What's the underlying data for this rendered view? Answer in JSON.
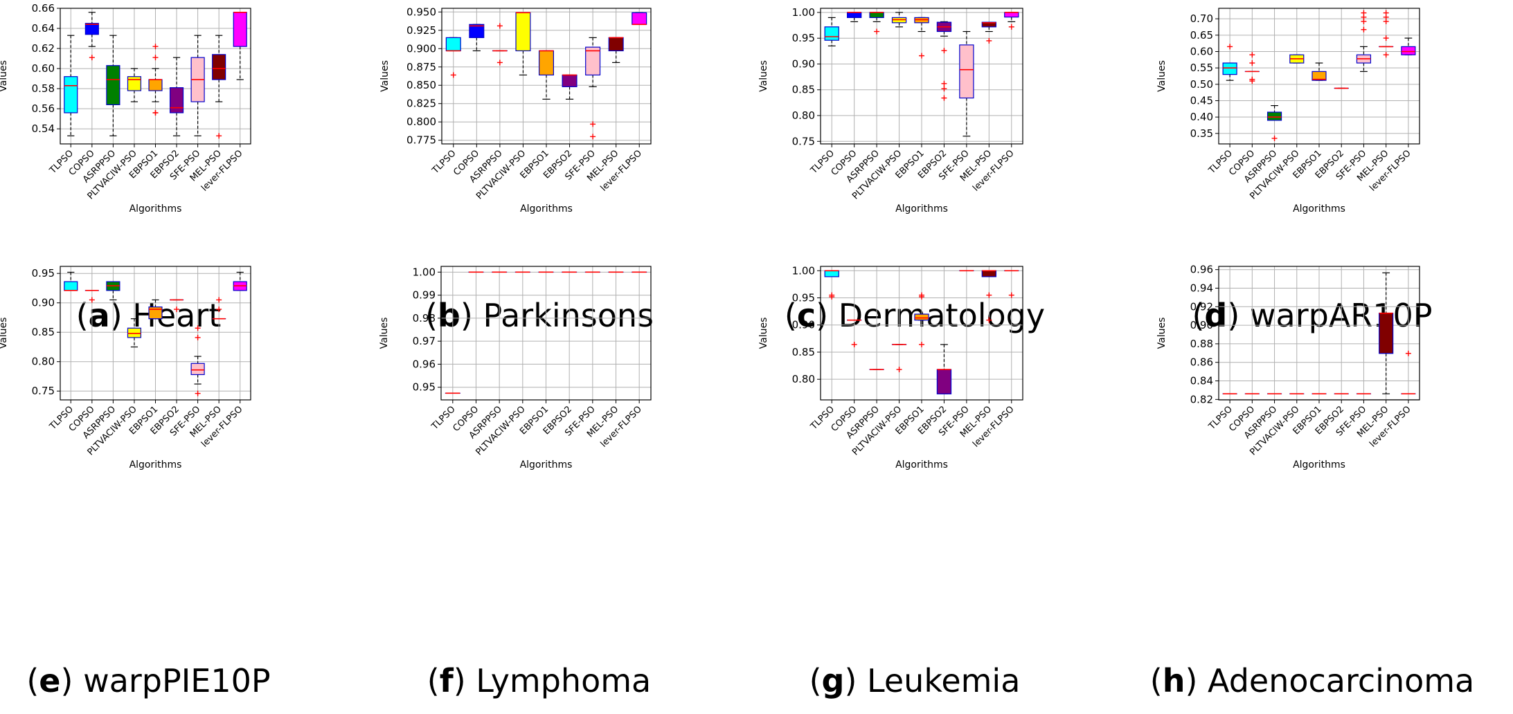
{
  "figure": {
    "algorithms": [
      "TLPSO",
      "COPSO",
      "ASRPPSO",
      "PLTVACIW-PSO",
      "EBPSO1",
      "EBPSO2",
      "SFE-PSO",
      "MEL-PSO",
      "lever-FLPSO"
    ],
    "colors": [
      "#00ffff",
      "#0000ff",
      "#008000",
      "#ffff00",
      "#ffa500",
      "#800080",
      "#ffc0cb",
      "#800000",
      "#ff00ff"
    ],
    "box_edge_color": "#0000cc",
    "median_color": "#ff0000",
    "outlier_color": "#ff0000",
    "whisker_color": "#000000"
  },
  "chart_data": [
    {
      "type": "box",
      "label": "a",
      "title": "Heart",
      "xlabel": "Algorithms",
      "ylabel": "Values",
      "ylim": [
        0.525,
        0.66
      ],
      "yticks": [
        "0.54",
        "0.56",
        "0.58",
        "0.60",
        "0.62",
        "0.64",
        "0.66"
      ],
      "boxes": [
        {
          "q1": 0.556,
          "med": 0.583,
          "q3": 0.592,
          "lo": 0.533,
          "hi": 0.633,
          "out": []
        },
        {
          "q1": 0.634,
          "med": 0.644,
          "q3": 0.645,
          "lo": 0.622,
          "hi": 0.656,
          "out": [
            0.611
          ]
        },
        {
          "q1": 0.564,
          "med": 0.589,
          "q3": 0.603,
          "lo": 0.533,
          "hi": 0.633,
          "out": []
        },
        {
          "q1": 0.578,
          "med": 0.589,
          "q3": 0.592,
          "lo": 0.567,
          "hi": 0.6,
          "out": []
        },
        {
          "q1": 0.578,
          "med": 0.589,
          "q3": 0.589,
          "lo": 0.567,
          "hi": 0.6,
          "out": [
            0.611,
            0.622,
            0.556,
            0.556
          ]
        },
        {
          "q1": 0.556,
          "med": 0.561,
          "q3": 0.581,
          "lo": 0.533,
          "hi": 0.611,
          "out": []
        },
        {
          "q1": 0.567,
          "med": 0.589,
          "q3": 0.611,
          "lo": 0.533,
          "hi": 0.633,
          "out": []
        },
        {
          "q1": 0.589,
          "med": 0.6,
          "q3": 0.614,
          "lo": 0.567,
          "hi": 0.633,
          "out": [
            0.533
          ]
        },
        {
          "q1": 0.622,
          "med": 0.656,
          "q3": 0.656,
          "lo": 0.589,
          "hi": 0.656,
          "out": []
        }
      ]
    },
    {
      "type": "box",
      "label": "b",
      "title": "Parkinsons",
      "xlabel": "Algorithms",
      "ylabel": "Values",
      "ylim": [
        0.77,
        0.955
      ],
      "yticks": [
        "0.775",
        "0.800",
        "0.825",
        "0.850",
        "0.875",
        "0.900",
        "0.925",
        "0.950"
      ],
      "boxes": [
        {
          "q1": 0.897,
          "med": 0.897,
          "q3": 0.915,
          "lo": 0.897,
          "hi": 0.915,
          "out": [
            0.864
          ]
        },
        {
          "q1": 0.915,
          "med": 0.931,
          "q3": 0.933,
          "lo": 0.897,
          "hi": 0.933,
          "out": []
        },
        {
          "q1": 0.897,
          "med": 0.897,
          "q3": 0.897,
          "lo": 0.897,
          "hi": 0.897,
          "out": [
            0.931,
            0.881
          ]
        },
        {
          "q1": 0.897,
          "med": 0.949,
          "q3": 0.949,
          "lo": 0.864,
          "hi": 0.949,
          "out": []
        },
        {
          "q1": 0.864,
          "med": 0.897,
          "q3": 0.897,
          "lo": 0.831,
          "hi": 0.897,
          "out": []
        },
        {
          "q1": 0.848,
          "med": 0.864,
          "q3": 0.864,
          "lo": 0.831,
          "hi": 0.864,
          "out": []
        },
        {
          "q1": 0.864,
          "med": 0.897,
          "q3": 0.902,
          "lo": 0.848,
          "hi": 0.915,
          "out": [
            0.797,
            0.78
          ]
        },
        {
          "q1": 0.897,
          "med": 0.915,
          "q3": 0.915,
          "lo": 0.881,
          "hi": 0.915,
          "out": []
        },
        {
          "q1": 0.933,
          "med": 0.933,
          "q3": 0.949,
          "lo": 0.933,
          "hi": 0.949,
          "out": []
        }
      ]
    },
    {
      "type": "box",
      "label": "c",
      "title": "Dermatology",
      "xlabel": "Algorithms",
      "ylabel": "Values",
      "ylim": [
        0.745,
        1.008
      ],
      "yticks": [
        "0.75",
        "0.80",
        "0.85",
        "0.90",
        "0.95",
        "1.00"
      ],
      "boxes": [
        {
          "q1": 0.946,
          "med": 0.953,
          "q3": 0.972,
          "lo": 0.935,
          "hi": 0.99,
          "out": []
        },
        {
          "q1": 0.99,
          "med": 1.0,
          "q3": 1.0,
          "lo": 0.982,
          "hi": 1.0,
          "out": []
        },
        {
          "q1": 0.99,
          "med": 1.0,
          "q3": 1.0,
          "lo": 0.982,
          "hi": 1.0,
          "out": [
            0.963
          ]
        },
        {
          "q1": 0.98,
          "med": 0.986,
          "q3": 0.99,
          "lo": 0.972,
          "hi": 1.0,
          "out": []
        },
        {
          "q1": 0.98,
          "med": 0.986,
          "q3": 0.99,
          "lo": 0.963,
          "hi": 0.99,
          "out": [
            0.916
          ]
        },
        {
          "q1": 0.963,
          "med": 0.972,
          "q3": 0.981,
          "lo": 0.954,
          "hi": 0.982,
          "out": [
            0.926,
            0.862,
            0.852,
            0.834
          ]
        },
        {
          "q1": 0.834,
          "med": 0.889,
          "q3": 0.937,
          "lo": 0.76,
          "hi": 0.963,
          "out": []
        },
        {
          "q1": 0.972,
          "med": 0.98,
          "q3": 0.981,
          "lo": 0.963,
          "hi": 0.981,
          "out": [
            0.945
          ]
        },
        {
          "q1": 0.991,
          "med": 1.0,
          "q3": 1.0,
          "lo": 0.982,
          "hi": 1.0,
          "out": [
            0.972
          ]
        }
      ]
    },
    {
      "type": "box",
      "label": "d",
      "title": "warpAR10P",
      "xlabel": "Algorithms",
      "ylabel": "Values",
      "ylim": [
        0.318,
        0.732
      ],
      "yticks": [
        "0.35",
        "0.40",
        "0.45",
        "0.50",
        "0.55",
        "0.60",
        "0.65",
        "0.70"
      ],
      "boxes": [
        {
          "q1": 0.53,
          "med": 0.55,
          "q3": 0.565,
          "lo": 0.512,
          "hi": 0.565,
          "out": [
            0.615
          ]
        },
        {
          "q1": 0.539,
          "med": 0.539,
          "q3": 0.539,
          "lo": 0.539,
          "hi": 0.539,
          "out": [
            0.59,
            0.565,
            0.515,
            0.51
          ]
        },
        {
          "q1": 0.39,
          "med": 0.4,
          "q3": 0.415,
          "lo": 0.39,
          "hi": 0.435,
          "out": [
            0.335
          ]
        },
        {
          "q1": 0.565,
          "med": 0.578,
          "q3": 0.59,
          "lo": 0.565,
          "hi": 0.59,
          "out": []
        },
        {
          "q1": 0.512,
          "med": 0.515,
          "q3": 0.539,
          "lo": 0.512,
          "hi": 0.565,
          "out": []
        },
        {
          "q1": 0.488,
          "med": 0.488,
          "q3": 0.488,
          "lo": 0.488,
          "hi": 0.488,
          "out": []
        },
        {
          "q1": 0.565,
          "med": 0.578,
          "q3": 0.59,
          "lo": 0.539,
          "hi": 0.615,
          "out": [
            0.718,
            0.705,
            0.692,
            0.667
          ]
        },
        {
          "q1": 0.615,
          "med": 0.615,
          "q3": 0.615,
          "lo": 0.615,
          "hi": 0.615,
          "out": [
            0.718,
            0.705,
            0.692,
            0.641,
            0.59
          ]
        },
        {
          "q1": 0.59,
          "med": 0.6,
          "q3": 0.615,
          "lo": 0.59,
          "hi": 0.641,
          "out": []
        }
      ]
    },
    {
      "type": "box",
      "label": "e",
      "title": "warpPIE10P",
      "xlabel": "Algorithms",
      "ylabel": "Values",
      "ylim": [
        0.735,
        0.962
      ],
      "yticks": [
        "0.75",
        "0.80",
        "0.85",
        "0.90",
        "0.95"
      ],
      "boxes": [
        {
          "q1": 0.921,
          "med": 0.921,
          "q3": 0.936,
          "lo": 0.921,
          "hi": 0.952,
          "out": []
        },
        {
          "q1": 0.921,
          "med": 0.921,
          "q3": 0.921,
          "lo": 0.921,
          "hi": 0.921,
          "out": [
            0.905
          ]
        },
        {
          "q1": 0.921,
          "med": 0.929,
          "q3": 0.936,
          "lo": 0.905,
          "hi": 0.936,
          "out": []
        },
        {
          "q1": 0.841,
          "med": 0.848,
          "q3": 0.857,
          "lo": 0.825,
          "hi": 0.873,
          "out": []
        },
        {
          "q1": 0.873,
          "med": 0.889,
          "q3": 0.893,
          "lo": 0.873,
          "hi": 0.905,
          "out": []
        },
        {
          "q1": 0.905,
          "med": 0.905,
          "q3": 0.905,
          "lo": 0.905,
          "hi": 0.905,
          "out": [
            0.889
          ]
        },
        {
          "q1": 0.778,
          "med": 0.786,
          "q3": 0.797,
          "lo": 0.762,
          "hi": 0.809,
          "out": [
            0.857,
            0.841,
            0.746
          ]
        },
        {
          "q1": 0.873,
          "med": 0.873,
          "q3": 0.873,
          "lo": 0.873,
          "hi": 0.873,
          "out": [
            0.905,
            0.889
          ]
        },
        {
          "q1": 0.921,
          "med": 0.929,
          "q3": 0.936,
          "lo": 0.921,
          "hi": 0.952,
          "out": []
        }
      ]
    },
    {
      "type": "box",
      "label": "f",
      "title": "Lymphoma",
      "xlabel": "Algorithms",
      "ylabel": "Values",
      "ylim": [
        0.9445,
        1.0025
      ],
      "yticks": [
        "0.95",
        "0.96",
        "0.97",
        "0.98",
        "0.99",
        "1.00"
      ],
      "boxes": [
        {
          "q1": 0.9474,
          "med": 0.9474,
          "q3": 0.9474,
          "lo": 0.9474,
          "hi": 0.9474,
          "out": []
        },
        {
          "q1": 1.0,
          "med": 1.0,
          "q3": 1.0,
          "lo": 1.0,
          "hi": 1.0,
          "out": []
        },
        {
          "q1": 1.0,
          "med": 1.0,
          "q3": 1.0,
          "lo": 1.0,
          "hi": 1.0,
          "out": []
        },
        {
          "q1": 1.0,
          "med": 1.0,
          "q3": 1.0,
          "lo": 1.0,
          "hi": 1.0,
          "out": []
        },
        {
          "q1": 1.0,
          "med": 1.0,
          "q3": 1.0,
          "lo": 1.0,
          "hi": 1.0,
          "out": []
        },
        {
          "q1": 1.0,
          "med": 1.0,
          "q3": 1.0,
          "lo": 1.0,
          "hi": 1.0,
          "out": []
        },
        {
          "q1": 1.0,
          "med": 1.0,
          "q3": 1.0,
          "lo": 1.0,
          "hi": 1.0,
          "out": []
        },
        {
          "q1": 1.0,
          "med": 1.0,
          "q3": 1.0,
          "lo": 1.0,
          "hi": 1.0,
          "out": []
        },
        {
          "q1": 1.0,
          "med": 1.0,
          "q3": 1.0,
          "lo": 1.0,
          "hi": 1.0,
          "out": []
        }
      ]
    },
    {
      "type": "box",
      "label": "g",
      "title": "Leukemia",
      "xlabel": "Algorithms",
      "ylabel": "Values",
      "ylim": [
        0.762,
        1.008
      ],
      "yticks": [
        "0.80",
        "0.85",
        "0.90",
        "0.95",
        "1.00"
      ],
      "boxes": [
        {
          "q1": 0.989,
          "med": 1.0,
          "q3": 1.0,
          "lo": 0.989,
          "hi": 1.0,
          "out": [
            0.955,
            0.952
          ]
        },
        {
          "q1": 0.909,
          "med": 0.909,
          "q3": 0.909,
          "lo": 0.909,
          "hi": 0.909,
          "out": [
            0.864
          ]
        },
        {
          "q1": 0.818,
          "med": 0.818,
          "q3": 0.818,
          "lo": 0.818,
          "hi": 0.818,
          "out": []
        },
        {
          "q1": 0.864,
          "med": 0.864,
          "q3": 0.864,
          "lo": 0.864,
          "hi": 0.864,
          "out": [
            0.818
          ]
        },
        {
          "q1": 0.909,
          "med": 0.913,
          "q3": 0.92,
          "lo": 0.909,
          "hi": 0.92,
          "out": [
            0.955,
            0.952,
            0.864
          ]
        },
        {
          "q1": 0.773,
          "med": 0.818,
          "q3": 0.818,
          "lo": 0.773,
          "hi": 0.864,
          "out": []
        },
        {
          "q1": 1.0,
          "med": 1.0,
          "q3": 1.0,
          "lo": 1.0,
          "hi": 1.0,
          "out": []
        },
        {
          "q1": 0.989,
          "med": 1.0,
          "q3": 1.0,
          "lo": 0.989,
          "hi": 1.0,
          "out": [
            0.955,
            0.909
          ]
        },
        {
          "q1": 1.0,
          "med": 1.0,
          "q3": 1.0,
          "lo": 1.0,
          "hi": 1.0,
          "out": [
            0.955
          ]
        }
      ]
    },
    {
      "type": "box",
      "label": "h",
      "title": "Adenocarcinoma",
      "xlabel": "Algorithms",
      "ylabel": "Values",
      "ylim": [
        0.8195,
        0.9635
      ],
      "yticks": [
        "0.82",
        "0.84",
        "0.86",
        "0.88",
        "0.90",
        "0.92",
        "0.94",
        "0.96"
      ],
      "boxes": [
        {
          "q1": 0.8261,
          "med": 0.8261,
          "q3": 0.8261,
          "lo": 0.8261,
          "hi": 0.8261,
          "out": []
        },
        {
          "q1": 0.8261,
          "med": 0.8261,
          "q3": 0.8261,
          "lo": 0.8261,
          "hi": 0.8261,
          "out": []
        },
        {
          "q1": 0.8261,
          "med": 0.8261,
          "q3": 0.8261,
          "lo": 0.8261,
          "hi": 0.8261,
          "out": []
        },
        {
          "q1": 0.8261,
          "med": 0.8261,
          "q3": 0.8261,
          "lo": 0.8261,
          "hi": 0.8261,
          "out": []
        },
        {
          "q1": 0.8261,
          "med": 0.8261,
          "q3": 0.8261,
          "lo": 0.8261,
          "hi": 0.8261,
          "out": []
        },
        {
          "q1": 0.8261,
          "med": 0.8261,
          "q3": 0.8261,
          "lo": 0.8261,
          "hi": 0.8261,
          "out": []
        },
        {
          "q1": 0.8261,
          "med": 0.8261,
          "q3": 0.8261,
          "lo": 0.8261,
          "hi": 0.8261,
          "out": []
        },
        {
          "q1": 0.8696,
          "med": 0.913,
          "q3": 0.913,
          "lo": 0.8261,
          "hi": 0.9565,
          "out": []
        },
        {
          "q1": 0.8261,
          "med": 0.8261,
          "q3": 0.8261,
          "lo": 0.8261,
          "hi": 0.8261,
          "out": [
            0.8696
          ]
        }
      ]
    }
  ]
}
